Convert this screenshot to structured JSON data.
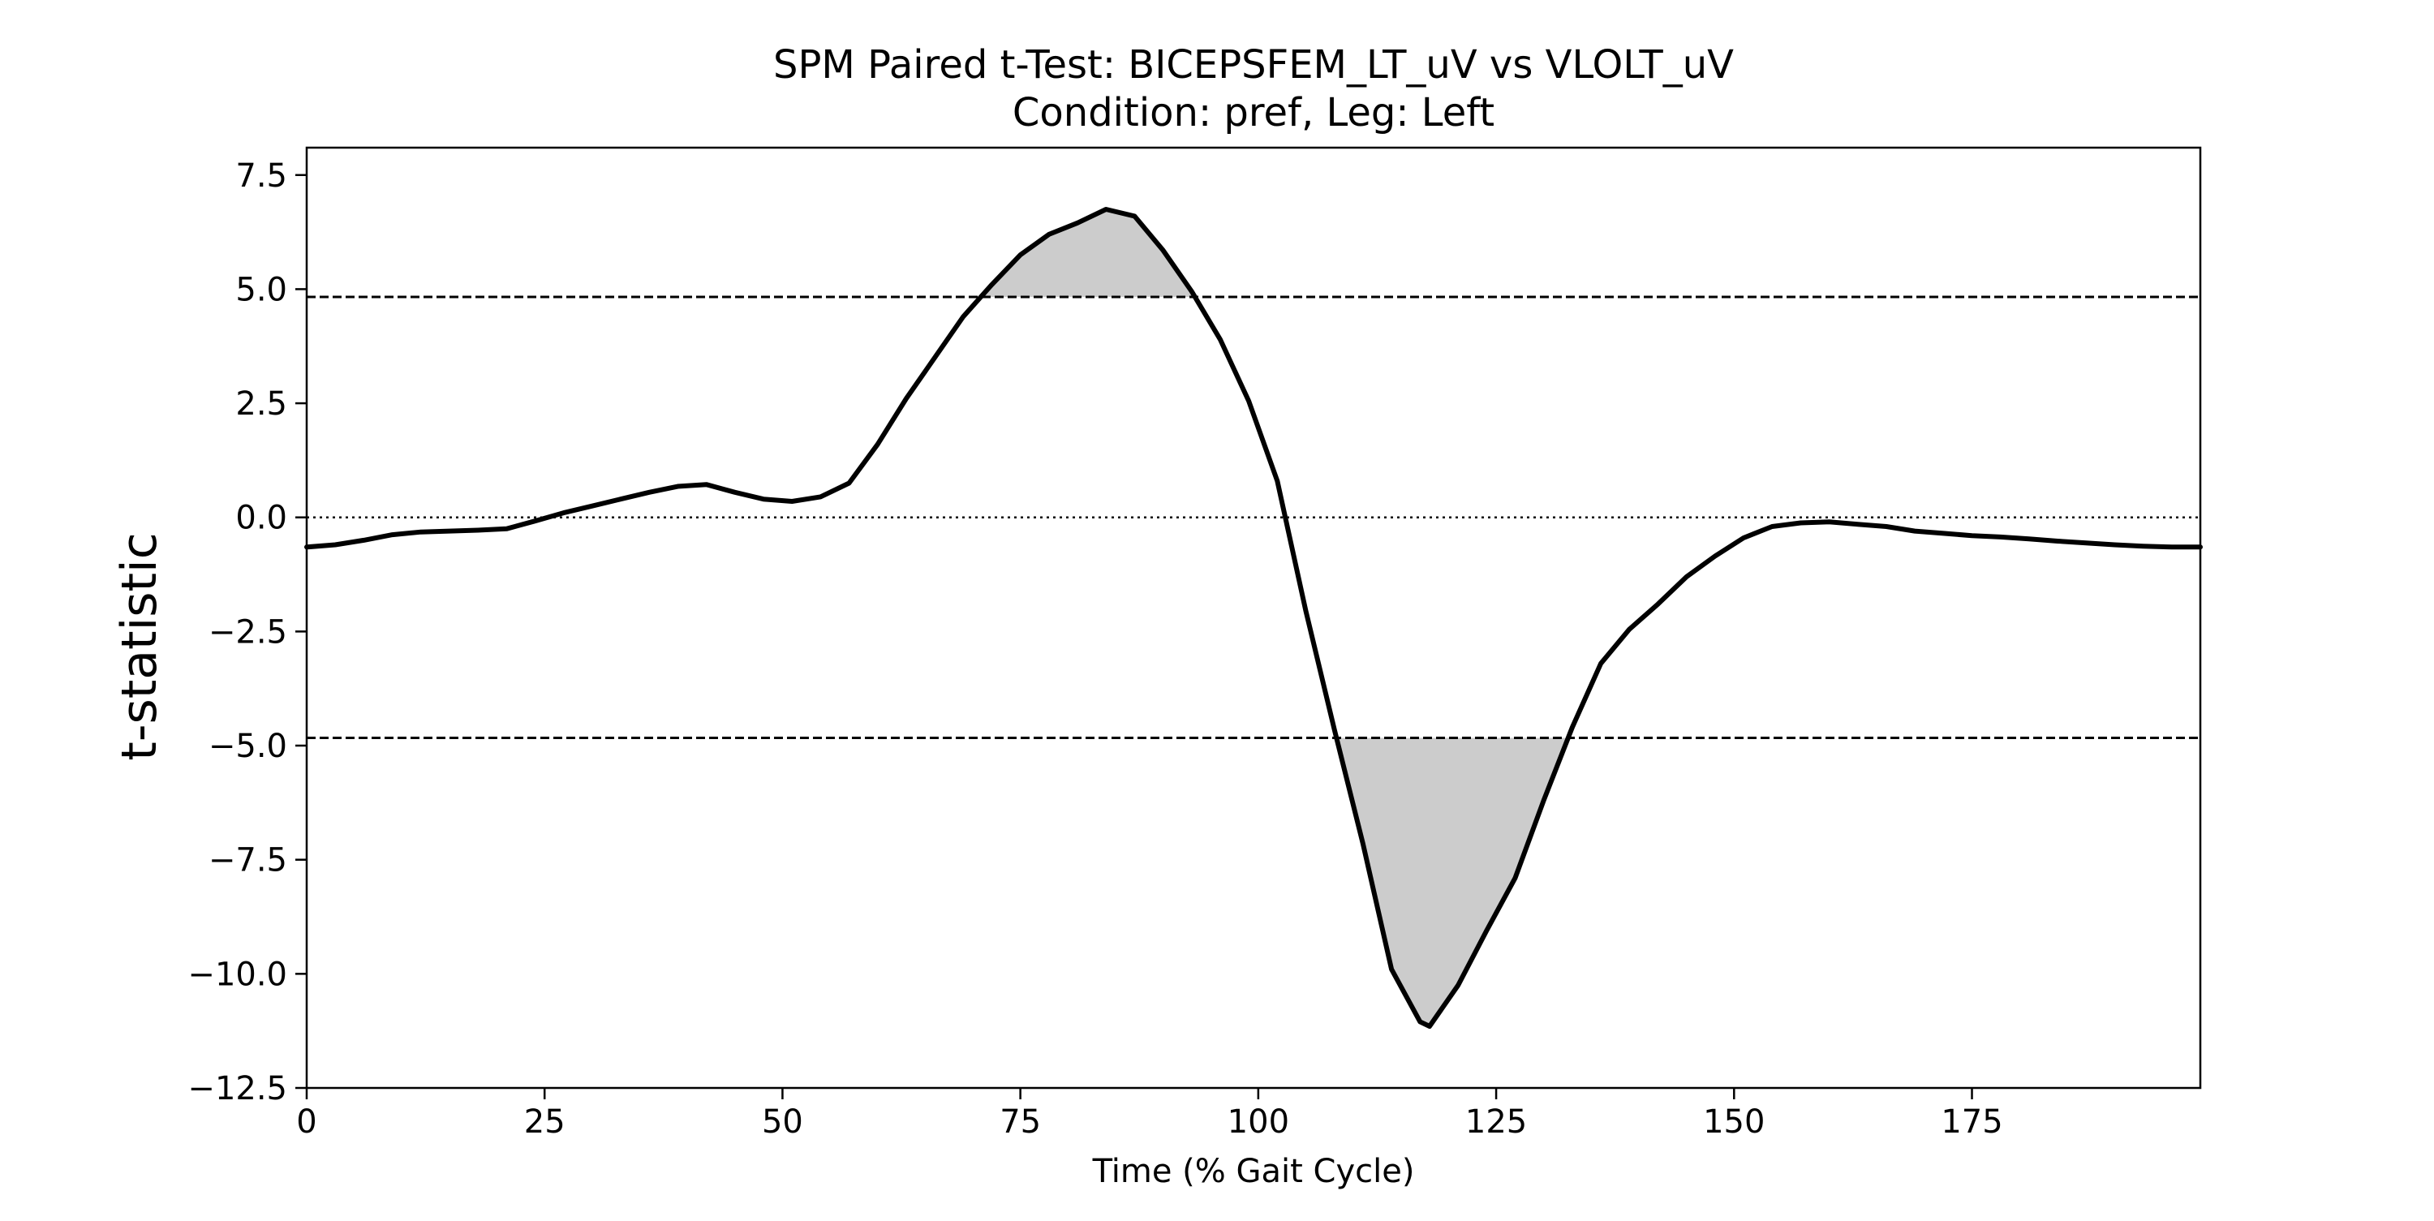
{
  "chart_data": {
    "type": "line",
    "title": "SPM Paired t-Test: BICEPSFEM_LT_uV vs VLOLT_uV",
    "subtitle": "Condition: pref, Leg: Left",
    "xlabel": "Time (% Gait Cycle)",
    "ylabel": "t-statistic",
    "xlim": [
      0,
      199
    ],
    "ylim": [
      -12.5,
      8.1
    ],
    "x_ticks": [
      0,
      25,
      50,
      75,
      100,
      125,
      150,
      175
    ],
    "x_tick_labels": [
      "0",
      "25",
      "50",
      "75",
      "100",
      "125",
      "150",
      "175"
    ],
    "y_ticks": [
      7.5,
      5.0,
      2.5,
      0.0,
      -2.5,
      -5.0,
      -7.5,
      -10.0,
      -12.5
    ],
    "y_tick_labels": [
      "7.5",
      "5.0",
      "2.5",
      "0.0",
      "−2.5",
      "−5.0",
      "−7.5",
      "−10.0",
      "−12.5"
    ],
    "threshold": 4.83,
    "grid": false,
    "legend": "none",
    "colors": {
      "line": "#000000",
      "fill": "#cccccc",
      "threshold": "#000000",
      "zero": "#000000"
    },
    "series": [
      {
        "x": [
          0,
          3,
          6,
          9,
          12,
          15,
          18,
          21,
          24,
          27,
          30,
          33,
          36,
          39,
          42,
          45,
          48,
          51,
          54,
          57,
          60,
          63,
          66,
          69,
          72,
          75,
          78,
          81,
          84,
          87,
          90,
          93,
          96,
          99,
          102,
          105,
          108,
          111,
          114,
          117,
          118,
          121,
          124,
          127,
          130,
          133,
          136,
          139,
          142,
          145,
          148,
          151,
          154,
          157,
          160,
          163,
          166,
          169,
          172,
          175,
          178,
          181,
          184,
          187,
          190,
          193,
          196,
          199
        ],
        "values": [
          -0.65,
          -0.6,
          -0.5,
          -0.38,
          -0.32,
          -0.3,
          -0.28,
          -0.25,
          -0.08,
          0.1,
          0.25,
          0.4,
          0.55,
          0.68,
          0.72,
          0.55,
          0.4,
          0.35,
          0.45,
          0.75,
          1.6,
          2.6,
          3.5,
          4.4,
          5.1,
          5.75,
          6.2,
          6.45,
          6.75,
          6.6,
          5.85,
          4.95,
          3.9,
          2.55,
          0.8,
          -2.05,
          -4.65,
          -7.15,
          -9.9,
          -11.05,
          -11.15,
          -10.25,
          -9.05,
          -7.9,
          -6.2,
          -4.6,
          -3.2,
          -2.45,
          -1.9,
          -1.3,
          -0.85,
          -0.45,
          -0.2,
          -0.12,
          -0.1,
          -0.15,
          -0.2,
          -0.3,
          -0.35,
          -0.4,
          -0.43,
          -0.47,
          -0.52,
          -0.56,
          -0.6,
          -0.63,
          -0.65,
          -0.65
        ]
      }
    ]
  }
}
